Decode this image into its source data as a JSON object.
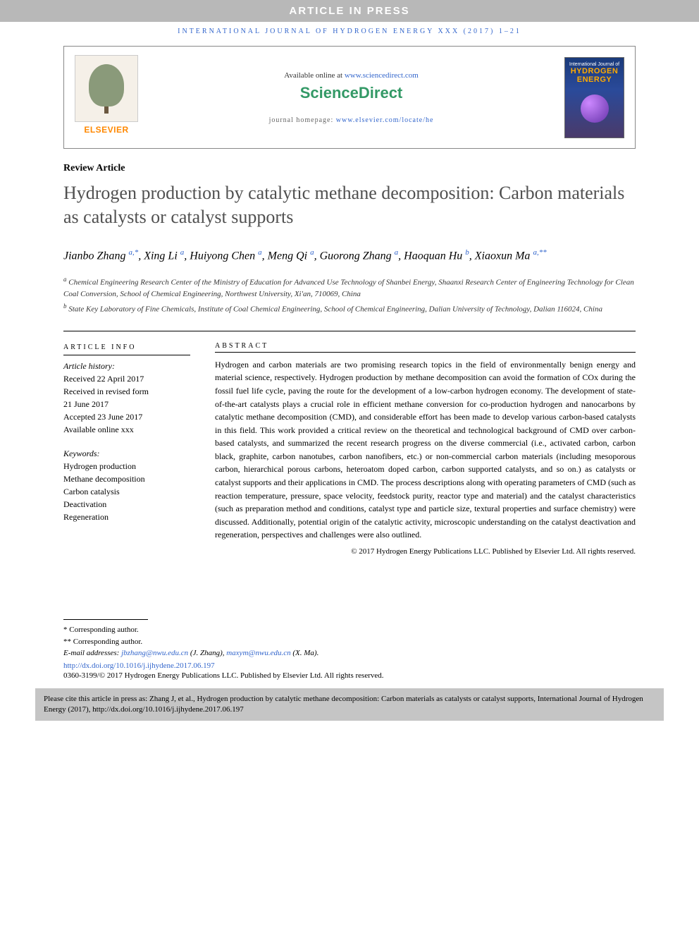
{
  "banner": {
    "press_text": "ARTICLE IN PRESS"
  },
  "header": {
    "journal_ref": "INTERNATIONAL JOURNAL OF HYDROGEN ENERGY XXX (2017) 1–21",
    "available_text": "Available online at ",
    "available_link": "www.sciencedirect.com",
    "brand": "ScienceDirect",
    "homepage_text": "journal homepage: ",
    "homepage_link": "www.elsevier.com/locate/he",
    "elsevier_label": "ELSEVIER",
    "cover_journal": "International Journal of",
    "cover_hydrogen": "HYDROGEN",
    "cover_energy": "ENERGY"
  },
  "article": {
    "type": "Review Article",
    "title": "Hydrogen production by catalytic methane decomposition: Carbon materials as catalysts or catalyst supports"
  },
  "authors": {
    "a1_name": "Jianbo Zhang",
    "a1_mark": "a,*",
    "a2_name": "Xing Li",
    "a2_mark": "a",
    "a3_name": "Huiyong Chen",
    "a3_mark": "a",
    "a4_name": "Meng Qi",
    "a4_mark": "a",
    "a5_name": "Guorong Zhang",
    "a5_mark": "a",
    "a6_name": "Haoquan Hu",
    "a6_mark": "b",
    "a7_name": "Xiaoxun Ma",
    "a7_mark": "a,**"
  },
  "affiliations": {
    "a_mark": "a",
    "a_text": "Chemical Engineering Research Center of the Ministry of Education for Advanced Use Technology of Shanbei Energy, Shaanxi Research Center of Engineering Technology for Clean Coal Conversion, School of Chemical Engineering, Northwest University, Xi'an, 710069, China",
    "b_mark": "b",
    "b_text": "State Key Laboratory of Fine Chemicals, Institute of Coal Chemical Engineering, School of Chemical Engineering, Dalian University of Technology, Dalian 116024, China"
  },
  "info": {
    "heading": "ARTICLE INFO",
    "history_label": "Article history:",
    "received": "Received 22 April 2017",
    "revised1": "Received in revised form",
    "revised2": "21 June 2017",
    "accepted": "Accepted 23 June 2017",
    "online": "Available online xxx",
    "keywords_label": "Keywords:",
    "kw1": "Hydrogen production",
    "kw2": "Methane decomposition",
    "kw3": "Carbon catalysis",
    "kw4": "Deactivation",
    "kw5": "Regeneration"
  },
  "abstract": {
    "heading": "ABSTRACT",
    "text": "Hydrogen and carbon materials are two promising research topics in the field of environmentally benign energy and material science, respectively. Hydrogen production by methane decomposition can avoid the formation of COx during the fossil fuel life cycle, paving the route for the development of a low-carbon hydrogen economy. The development of state-of-the-art catalysts plays a crucial role in efficient methane conversion for co-production hydrogen and nanocarbons by catalytic methane decomposition (CMD), and considerable effort has been made to develop various carbon-based catalysts in this field. This work provided a critical review on the theoretical and technological background of CMD over carbon-based catalysts, and summarized the recent research progress on the diverse commercial (i.e., activated carbon, carbon black, graphite, carbon nanotubes, carbon nanofibers, etc.) or non-commercial carbon materials (including mesoporous carbon, hierarchical porous carbons, heteroatom doped carbon, carbon supported catalysts, and so on.) as catalysts or catalyst supports and their applications in CMD. The process descriptions along with operating parameters of CMD (such as reaction temperature, pressure, space velocity, feedstock purity, reactor type and material) and the catalyst characteristics (such as preparation method and conditions, catalyst type and particle size, textural properties and surface chemistry) were discussed. Additionally, potential origin of the catalytic activity, microscopic understanding on the catalyst deactivation and regeneration, perspectives and challenges were also outlined.",
    "copyright": "© 2017 Hydrogen Energy Publications LLC. Published by Elsevier Ltd. All rights reserved."
  },
  "footer": {
    "corr1_mark": "*",
    "corr1": "Corresponding author.",
    "corr2_mark": "**",
    "corr2": "Corresponding author.",
    "email_label": "E-mail addresses: ",
    "email1": "jbzhang@nwu.edu.cn",
    "email1_name": " (J. Zhang), ",
    "email2": "maxym@nwu.edu.cn",
    "email2_name": " (X. Ma).",
    "doi": "http://dx.doi.org/10.1016/j.ijhydene.2017.06.197",
    "issn": "0360-3199/© 2017 Hydrogen Energy Publications LLC. Published by Elsevier Ltd. All rights reserved."
  },
  "citebox": {
    "text": "Please cite this article in press as: Zhang J, et al., Hydrogen production by catalytic methane decomposition: Carbon materials as catalysts or catalyst supports, International Journal of Hydrogen Energy (2017), http://dx.doi.org/10.1016/j.ijhydene.2017.06.197"
  }
}
